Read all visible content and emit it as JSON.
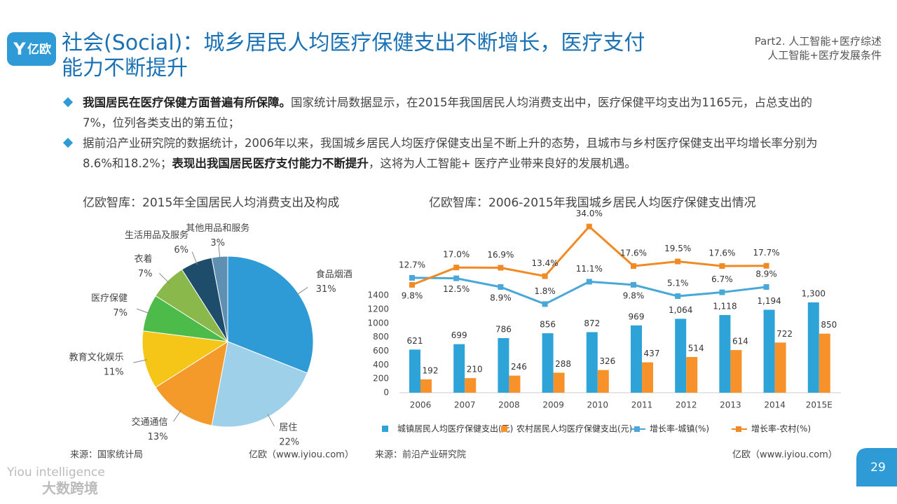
{
  "logo": "亿欧",
  "title": "社会(Social)：城乡居民人均医疗保健支出不断增长，医疗支付能力不断提升",
  "section": [
    "Part2. 人工智能+医疗综述",
    "人工智能+医疗发展条件"
  ],
  "bullets": [
    {
      "parts": [
        {
          "bold": true,
          "text": "我国居民在医疗保健方面普遍有所保障。"
        },
        {
          "bold": false,
          "text": "国家统计局数据显示，在2015年我国居民人均消费支出中，医疗保健平均支出为1165元，占总支出的7%，位列各类支出的第五位；"
        }
      ]
    },
    {
      "parts": [
        {
          "bold": false,
          "text": "据前沿产业研究院的数据统计，2006年以来，我国城乡居民人均医疗保健支出呈不断上升的态势，且城市与乡村医疗保健支出平均增长率分别为8.6%和18.2%；"
        },
        {
          "bold": true,
          "text": "表现出我国居民医疗支付能力不断提升"
        },
        {
          "bold": false,
          "text": "，这将为人工智能+ 医疗产业带来良好的发展机遇。"
        }
      ]
    }
  ],
  "chart_data": [
    {
      "type": "pie",
      "title": "亿欧智库：2015年全国居民人均消费支出及构成",
      "categories": [
        "食品烟酒",
        "居住",
        "交通通信",
        "教育文化娱乐",
        "医疗保健",
        "衣着",
        "生活用品及服务",
        "其他用品和服务"
      ],
      "values": [
        31,
        22,
        13,
        11,
        7,
        7,
        6,
        3
      ],
      "value_labels": [
        "31%",
        "22%",
        "13%",
        "11%",
        "7%",
        "7%",
        "6%",
        "3%"
      ],
      "colors": [
        "#2e9bd6",
        "#9fd0ea",
        "#f39a2b",
        "#f5c518",
        "#4cbb4a",
        "#8ab84a",
        "#1e4d6b",
        "#5f8fb3"
      ],
      "source": "来源：国家统计局",
      "credit": "亿欧（www.iyiou.com）"
    },
    {
      "type": "combo",
      "title": "亿欧智库：2006-2015年我国城乡居民人均医疗保健支出情况",
      "categories": [
        "2006",
        "2007",
        "2008",
        "2009",
        "2010",
        "2011",
        "2012",
        "2013",
        "2014",
        "2015E"
      ],
      "series": [
        {
          "name": "城镇居民人均医疗保健支出(元)",
          "kind": "bar",
          "color": "#2ea3d8",
          "values": [
            621,
            699,
            786,
            856,
            872,
            969,
            1064,
            1118,
            1194,
            1300
          ],
          "value_labels": [
            "621",
            "699",
            "786",
            "856",
            "872",
            "969",
            "1,064",
            "1,118",
            "1,194",
            "1,300"
          ]
        },
        {
          "name": "农村居民人均医疗保健支出(元)",
          "kind": "bar",
          "color": "#f7922a",
          "values": [
            192,
            210,
            246,
            288,
            326,
            437,
            514,
            614,
            722,
            850
          ]
        },
        {
          "name": "增长率-城镇(%)",
          "kind": "line",
          "axis": "y2",
          "color": "#4aa8d8",
          "values": [
            12.7,
            12.5,
            8.9,
            1.8,
            11.1,
            9.8,
            5.1,
            6.7,
            8.9,
            null
          ],
          "value_labels": [
            "12.7%",
            "12.5%",
            "8.9%",
            "1.8%",
            "11.1%",
            "9.8%",
            "5.1%",
            "6.7%",
            "8.9%",
            null
          ]
        },
        {
          "name": "增长率-农村(%)",
          "kind": "line",
          "axis": "y2",
          "color": "#f08a24",
          "values": [
            9.8,
            17.0,
            16.9,
            13.4,
            34.0,
            17.6,
            19.5,
            17.6,
            17.7,
            null
          ],
          "value_labels": [
            "9.8%",
            "17.0%",
            "16.9%",
            "13.4%",
            "34.0%",
            "17.6%",
            "19.5%",
            "17.6%",
            "17.7%",
            null
          ]
        }
      ],
      "ylim": [
        0,
        2600
      ],
      "yticks": [
        0,
        200,
        400,
        600,
        800,
        1000,
        1200,
        1400
      ],
      "y2lim": [
        -35,
        40
      ],
      "source": "来源：前沿产业研究院",
      "credit": "亿欧（www.iyiou.com）"
    }
  ],
  "page_number": "29",
  "watermark": [
    "Yiou intelligence",
    "大数跨境"
  ]
}
